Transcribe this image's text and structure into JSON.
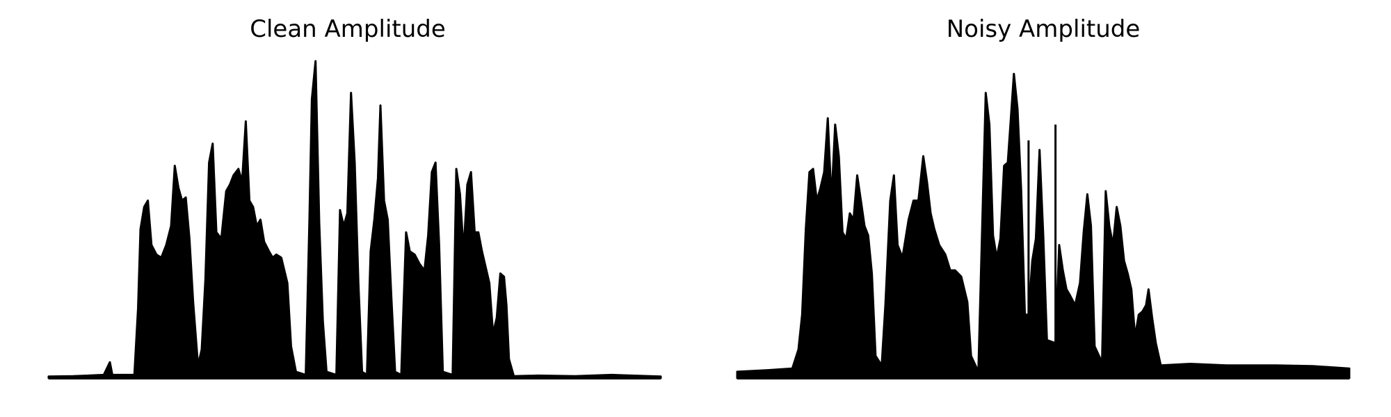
{
  "chart_data": [
    {
      "type": "area",
      "title": "Clean Amplitude",
      "xlabel": "",
      "ylabel": "",
      "axes_visible": false,
      "grid": false,
      "color": "#000000",
      "xlim": [
        0,
        1
      ],
      "ylim": [
        0,
        1
      ],
      "envelope": [
        [
          0.0,
          0.005
        ],
        [
          0.04,
          0.006
        ],
        [
          0.09,
          0.01
        ],
        [
          0.1,
          0.05
        ],
        [
          0.104,
          0.01
        ],
        [
          0.14,
          0.01
        ],
        [
          0.146,
          0.22
        ],
        [
          0.15,
          0.47
        ],
        [
          0.156,
          0.54
        ],
        [
          0.162,
          0.56
        ],
        [
          0.168,
          0.42
        ],
        [
          0.176,
          0.39
        ],
        [
          0.184,
          0.38
        ],
        [
          0.192,
          0.42
        ],
        [
          0.2,
          0.48
        ],
        [
          0.206,
          0.67
        ],
        [
          0.212,
          0.6
        ],
        [
          0.218,
          0.56
        ],
        [
          0.224,
          0.57
        ],
        [
          0.23,
          0.44
        ],
        [
          0.236,
          0.24
        ],
        [
          0.244,
          0.04
        ],
        [
          0.25,
          0.09
        ],
        [
          0.256,
          0.31
        ],
        [
          0.262,
          0.68
        ],
        [
          0.268,
          0.74
        ],
        [
          0.274,
          0.46
        ],
        [
          0.282,
          0.44
        ],
        [
          0.29,
          0.59
        ],
        [
          0.296,
          0.61
        ],
        [
          0.302,
          0.64
        ],
        [
          0.31,
          0.66
        ],
        [
          0.316,
          0.62
        ],
        [
          0.322,
          0.81
        ],
        [
          0.328,
          0.56
        ],
        [
          0.334,
          0.54
        ],
        [
          0.34,
          0.48
        ],
        [
          0.346,
          0.5
        ],
        [
          0.352,
          0.43
        ],
        [
          0.36,
          0.4
        ],
        [
          0.366,
          0.38
        ],
        [
          0.372,
          0.39
        ],
        [
          0.38,
          0.38
        ],
        [
          0.39,
          0.3
        ],
        [
          0.396,
          0.1
        ],
        [
          0.404,
          0.02
        ],
        [
          0.42,
          0.01
        ],
        [
          0.426,
          0.5
        ],
        [
          0.43,
          0.88
        ],
        [
          0.436,
          1.0
        ],
        [
          0.442,
          0.49
        ],
        [
          0.448,
          0.18
        ],
        [
          0.454,
          0.02
        ],
        [
          0.47,
          0.01
        ],
        [
          0.476,
          0.53
        ],
        [
          0.482,
          0.48
        ],
        [
          0.488,
          0.52
        ],
        [
          0.494,
          0.9
        ],
        [
          0.5,
          0.68
        ],
        [
          0.506,
          0.3
        ],
        [
          0.512,
          0.02
        ],
        [
          0.52,
          0.01
        ],
        [
          0.526,
          0.4
        ],
        [
          0.532,
          0.5
        ],
        [
          0.538,
          0.63
        ],
        [
          0.542,
          0.86
        ],
        [
          0.548,
          0.56
        ],
        [
          0.554,
          0.5
        ],
        [
          0.56,
          0.25
        ],
        [
          0.566,
          0.02
        ],
        [
          0.576,
          0.01
        ],
        [
          0.58,
          0.24
        ],
        [
          0.584,
          0.46
        ],
        [
          0.59,
          0.4
        ],
        [
          0.598,
          0.39
        ],
        [
          0.606,
          0.36
        ],
        [
          0.614,
          0.34
        ],
        [
          0.62,
          0.45
        ],
        [
          0.626,
          0.65
        ],
        [
          0.632,
          0.68
        ],
        [
          0.638,
          0.42
        ],
        [
          0.644,
          0.02
        ],
        [
          0.66,
          0.01
        ],
        [
          0.666,
          0.66
        ],
        [
          0.672,
          0.58
        ],
        [
          0.678,
          0.4
        ],
        [
          0.684,
          0.61
        ],
        [
          0.69,
          0.65
        ],
        [
          0.696,
          0.46
        ],
        [
          0.702,
          0.46
        ],
        [
          0.708,
          0.4
        ],
        [
          0.714,
          0.35
        ],
        [
          0.72,
          0.3
        ],
        [
          0.726,
          0.14
        ],
        [
          0.732,
          0.19
        ],
        [
          0.738,
          0.33
        ],
        [
          0.744,
          0.32
        ],
        [
          0.748,
          0.23
        ],
        [
          0.752,
          0.06
        ],
        [
          0.76,
          0.006
        ],
        [
          0.8,
          0.008
        ],
        [
          0.86,
          0.006
        ],
        [
          0.92,
          0.01
        ],
        [
          1.0,
          0.005
        ]
      ]
    },
    {
      "type": "area",
      "title": "Noisy Amplitude",
      "xlabel": "",
      "ylabel": "",
      "axes_visible": false,
      "grid": false,
      "color": "#000000",
      "xlim": [
        0,
        1
      ],
      "ylim": [
        0,
        1
      ],
      "envelope": [
        [
          0.0,
          0.02
        ],
        [
          0.05,
          0.025
        ],
        [
          0.09,
          0.03
        ],
        [
          0.1,
          0.09
        ],
        [
          0.106,
          0.2
        ],
        [
          0.112,
          0.47
        ],
        [
          0.118,
          0.65
        ],
        [
          0.124,
          0.66
        ],
        [
          0.13,
          0.56
        ],
        [
          0.136,
          0.6
        ],
        [
          0.142,
          0.65
        ],
        [
          0.148,
          0.82
        ],
        [
          0.154,
          0.56
        ],
        [
          0.16,
          0.8
        ],
        [
          0.166,
          0.7
        ],
        [
          0.172,
          0.46
        ],
        [
          0.178,
          0.44
        ],
        [
          0.184,
          0.52
        ],
        [
          0.19,
          0.5
        ],
        [
          0.196,
          0.64
        ],
        [
          0.202,
          0.56
        ],
        [
          0.208,
          0.48
        ],
        [
          0.214,
          0.45
        ],
        [
          0.22,
          0.33
        ],
        [
          0.226,
          0.07
        ],
        [
          0.236,
          0.04
        ],
        [
          0.242,
          0.23
        ],
        [
          0.25,
          0.56
        ],
        [
          0.256,
          0.64
        ],
        [
          0.262,
          0.42
        ],
        [
          0.27,
          0.38
        ],
        [
          0.28,
          0.5
        ],
        [
          0.288,
          0.56
        ],
        [
          0.296,
          0.56
        ],
        [
          0.304,
          0.7
        ],
        [
          0.31,
          0.62
        ],
        [
          0.316,
          0.52
        ],
        [
          0.322,
          0.47
        ],
        [
          0.33,
          0.42
        ],
        [
          0.34,
          0.39
        ],
        [
          0.348,
          0.34
        ],
        [
          0.356,
          0.34
        ],
        [
          0.366,
          0.32
        ],
        [
          0.376,
          0.24
        ],
        [
          0.382,
          0.07
        ],
        [
          0.394,
          0.02
        ],
        [
          0.4,
          0.46
        ],
        [
          0.406,
          0.9
        ],
        [
          0.412,
          0.8
        ],
        [
          0.418,
          0.45
        ],
        [
          0.424,
          0.38
        ],
        [
          0.43,
          0.44
        ],
        [
          0.436,
          0.67
        ],
        [
          0.442,
          0.68
        ],
        [
          0.446,
          0.79
        ],
        [
          0.452,
          0.96
        ],
        [
          0.458,
          0.85
        ],
        [
          0.464,
          0.59
        ],
        [
          0.47,
          0.2
        ],
        [
          0.476,
          0.2
        ],
        [
          0.482,
          0.37
        ],
        [
          0.488,
          0.44
        ],
        [
          0.494,
          0.72
        ],
        [
          0.5,
          0.45
        ],
        [
          0.506,
          0.12
        ],
        [
          0.52,
          0.11
        ],
        [
          0.526,
          0.42
        ],
        [
          0.532,
          0.34
        ],
        [
          0.538,
          0.28
        ],
        [
          0.544,
          0.26
        ],
        [
          0.552,
          0.23
        ],
        [
          0.56,
          0.3
        ],
        [
          0.566,
          0.46
        ],
        [
          0.572,
          0.58
        ],
        [
          0.578,
          0.48
        ],
        [
          0.584,
          0.1
        ],
        [
          0.596,
          0.05
        ],
        [
          0.602,
          0.59
        ],
        [
          0.608,
          0.48
        ],
        [
          0.614,
          0.42
        ],
        [
          0.62,
          0.54
        ],
        [
          0.626,
          0.48
        ],
        [
          0.632,
          0.37
        ],
        [
          0.638,
          0.33
        ],
        [
          0.644,
          0.28
        ],
        [
          0.65,
          0.13
        ],
        [
          0.656,
          0.2
        ],
        [
          0.662,
          0.21
        ],
        [
          0.668,
          0.23
        ],
        [
          0.672,
          0.28
        ],
        [
          0.678,
          0.19
        ],
        [
          0.684,
          0.11
        ],
        [
          0.692,
          0.04
        ],
        [
          0.74,
          0.045
        ],
        [
          0.8,
          0.04
        ],
        [
          0.88,
          0.04
        ],
        [
          0.94,
          0.038
        ],
        [
          1.0,
          0.03
        ]
      ],
      "spikes": [
        [
          0.476,
          0.75
        ],
        [
          0.52,
          0.8
        ]
      ]
    }
  ]
}
